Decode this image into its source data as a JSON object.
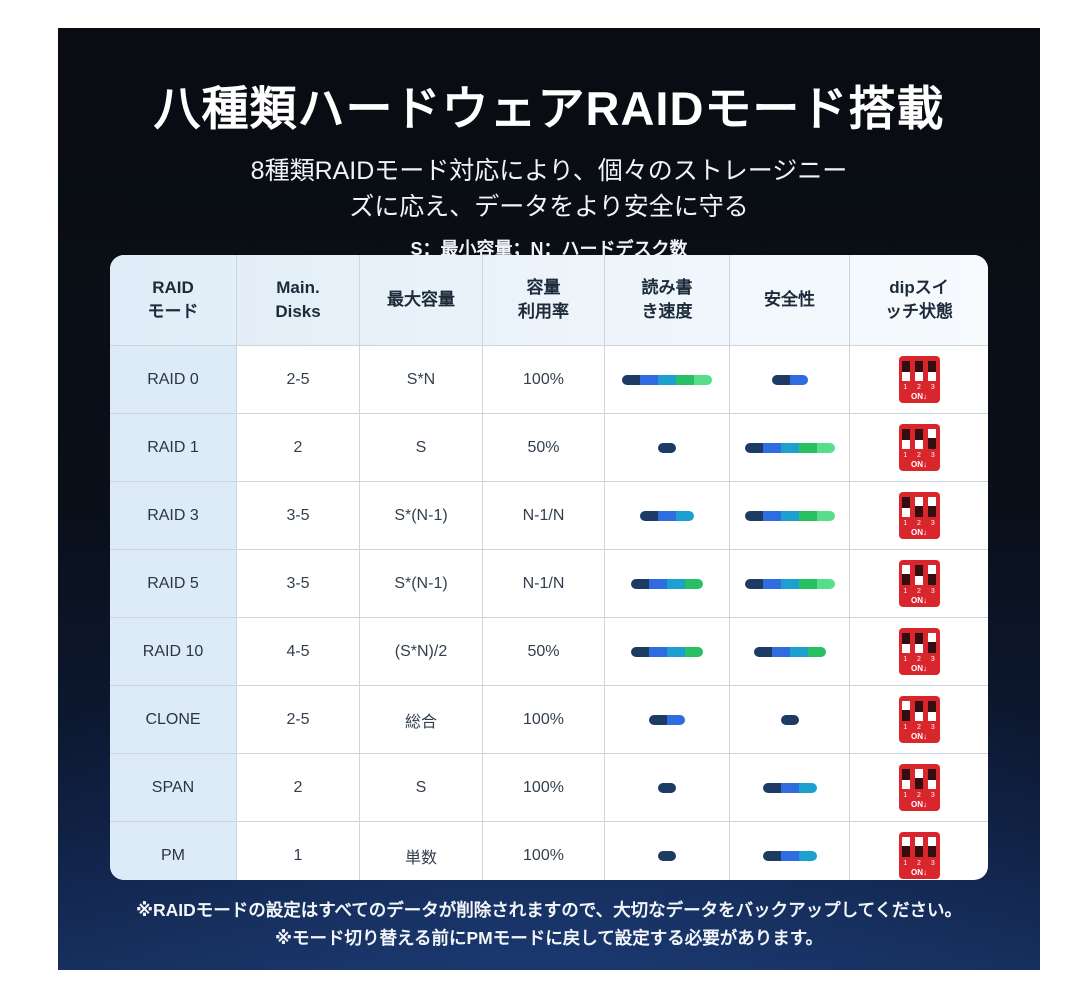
{
  "page": {
    "title": "八種類ハードウェアRAIDモード搭載",
    "subtitle_line1": "8種類RAIDモード対応により、個々のストレージニー",
    "subtitle_line2": "ズに応え、データをより安全に守る",
    "legend_note": "S：最小容量；N：ハードデスク数",
    "footnote_line1": "※RAIDモードの設定はすべてのデータが削除されますので、大切なデータをバックアップしてください。",
    "footnote_line2": "※モード切り替える前にPMモードに戻して設定する必要があります。"
  },
  "table": {
    "headers": [
      "RAID\nモード",
      "Main.\nDisks",
      "最大容量",
      "容量\n利用率",
      "読み書\nき速度",
      "安全性",
      "dipスイ\nッチ状態"
    ],
    "rows": [
      {
        "mode": "RAID 0",
        "disks": "2-5",
        "capacity": "S*N",
        "utilization": "100%",
        "speed_level": 5,
        "safety_level": 2,
        "dip": [
          "down",
          "down",
          "down"
        ]
      },
      {
        "mode": "RAID 1",
        "disks": "2",
        "capacity": "S",
        "utilization": "50%",
        "speed_level": 1,
        "safety_level": 5,
        "dip": [
          "down",
          "down",
          "up"
        ]
      },
      {
        "mode": "RAID 3",
        "disks": "3-5",
        "capacity": "S*(N-1)",
        "utilization": "N-1/N",
        "speed_level": 3,
        "safety_level": 5,
        "dip": [
          "down",
          "up",
          "up"
        ]
      },
      {
        "mode": "RAID 5",
        "disks": "3-5",
        "capacity": "S*(N-1)",
        "utilization": "N-1/N",
        "speed_level": 4,
        "safety_level": 5,
        "dip": [
          "up",
          "down",
          "up"
        ]
      },
      {
        "mode": "RAID 10",
        "disks": "4-5",
        "capacity": "(S*N)/2",
        "utilization": "50%",
        "speed_level": 4,
        "safety_level": 4,
        "dip": [
          "down",
          "down",
          "up"
        ]
      },
      {
        "mode": "CLONE",
        "disks": "2-5",
        "capacity": "総合",
        "utilization": "100%",
        "speed_level": 2,
        "safety_level": 1,
        "dip": [
          "up",
          "down",
          "down"
        ]
      },
      {
        "mode": "SPAN",
        "disks": "2",
        "capacity": "S",
        "utilization": "100%",
        "speed_level": 1,
        "safety_level": 3,
        "dip": [
          "down",
          "up",
          "down"
        ]
      },
      {
        "mode": "PM",
        "disks": "1",
        "capacity": "単数",
        "utilization": "100%",
        "speed_level": 1,
        "safety_level": 3,
        "dip": [
          "up",
          "up",
          "up"
        ]
      }
    ],
    "dip_icon": {
      "pins_label": "1 2 3",
      "on_label": "ON↓"
    }
  },
  "colors": {
    "bar_segments": [
      "#1d3c63",
      "#2f6ce0",
      "#1d9fd0",
      "#27c063",
      "#58dd8b"
    ],
    "dip_red": "#d9252c",
    "panel_top": "#090c11",
    "panel_bottom": "#152a52"
  }
}
